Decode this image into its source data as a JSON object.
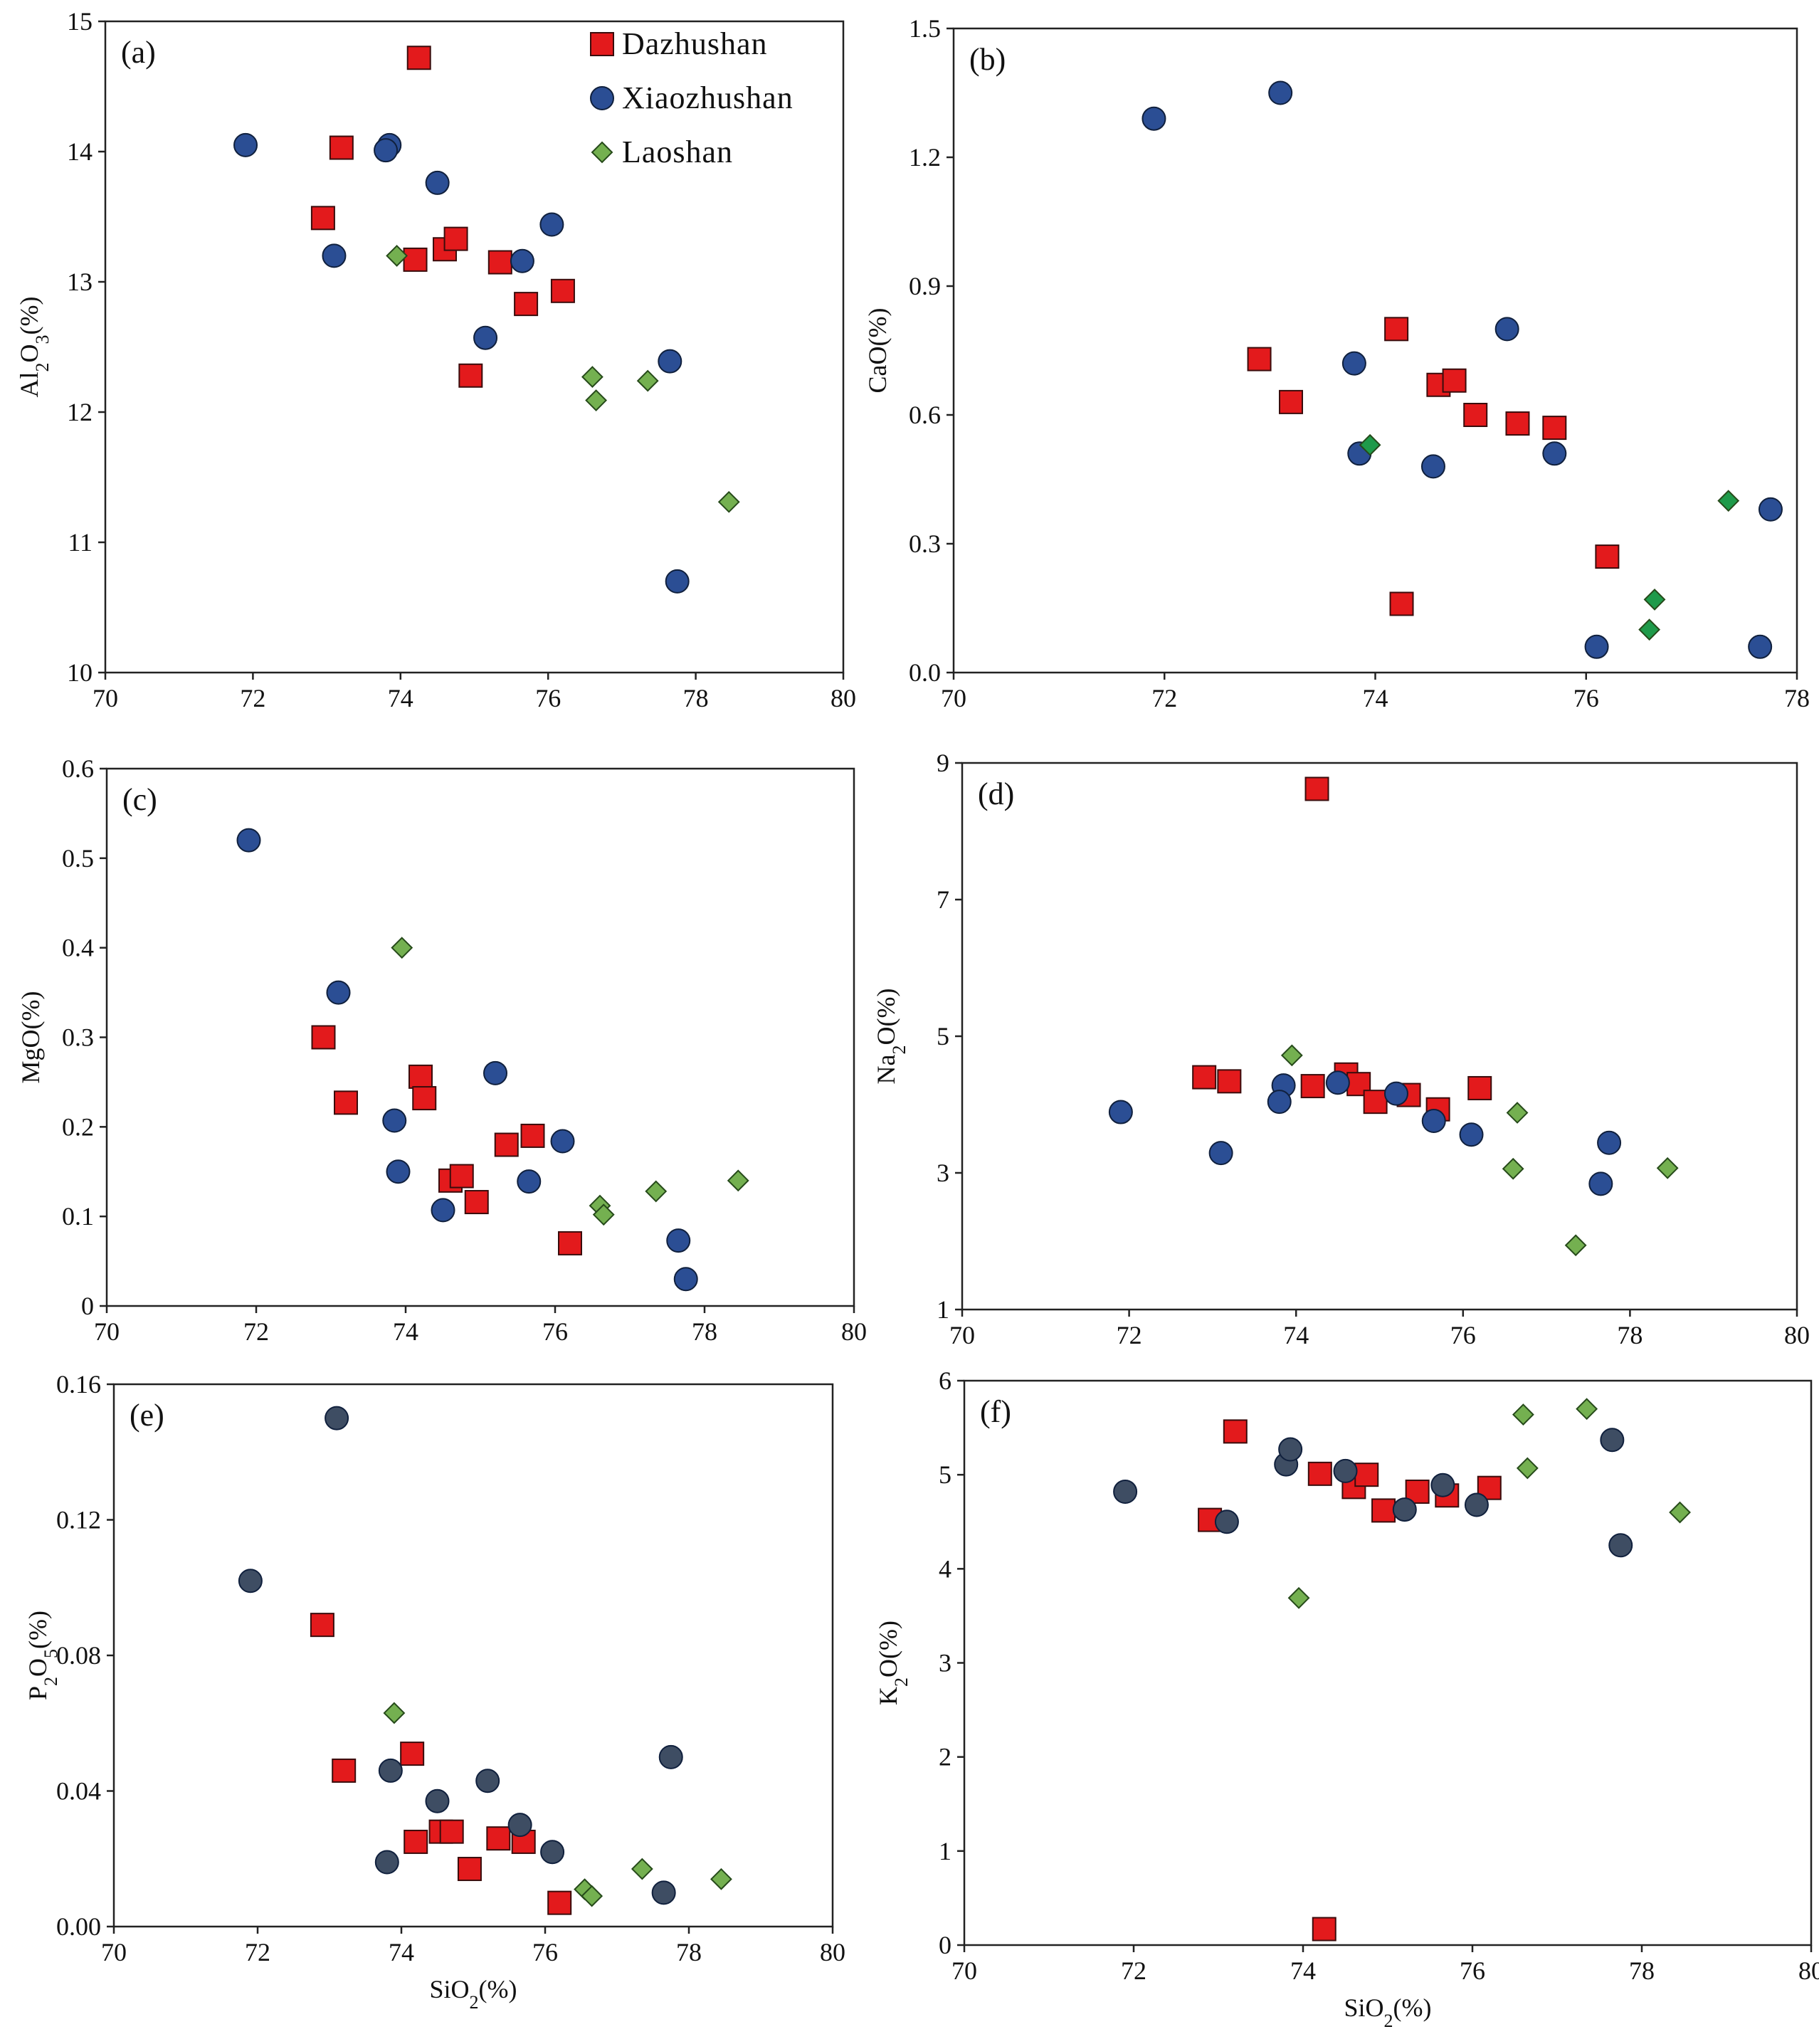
{
  "colors": {
    "Dazhushan": "#e31a1c",
    "Xiaozhushan": "#2b4e94",
    "Xiaozhushan_ef": "#3e4d63",
    "Laoshan": "#74b050",
    "Laoshan_b": "#1f9a4a"
  },
  "legend": [
    {
      "name": "Dazhushan",
      "marker": "square"
    },
    {
      "name": "Xiaozhushan",
      "marker": "circle"
    },
    {
      "name": "Laoshan",
      "marker": "diamond"
    }
  ],
  "chart_data": [
    {
      "type": "scatter",
      "panel": "(a)",
      "title": "",
      "xlabel": "",
      "ylabel": "Al2O3(%)",
      "ylabel_parts": [
        "Al",
        "2",
        "O",
        "3",
        "(%)"
      ],
      "xlim": [
        70,
        80
      ],
      "ylim": [
        10,
        15
      ],
      "xticks": [
        "70",
        "72",
        "74",
        "76",
        "78",
        "80"
      ],
      "yticks": [
        "10",
        "11",
        "12",
        "13",
        "14",
        "15"
      ],
      "series": [
        {
          "name": "Dazhushan",
          "x": [
            74.25,
            73.2,
            72.95,
            74.2,
            74.6,
            74.75,
            75.35,
            75.7,
            76.2,
            74.95
          ],
          "y": [
            14.72,
            14.03,
            13.49,
            13.17,
            13.25,
            13.33,
            13.15,
            12.83,
            12.93,
            12.28
          ]
        },
        {
          "name": "Xiaozhushan",
          "x": [
            71.9,
            73.85,
            73.8,
            74.5,
            73.1,
            76.05,
            75.65,
            75.15,
            77.65,
            77.75
          ],
          "y": [
            14.05,
            14.05,
            14.01,
            13.76,
            13.2,
            13.44,
            13.16,
            12.57,
            12.39,
            10.7
          ]
        },
        {
          "name": "Laoshan",
          "x": [
            73.95,
            76.6,
            76.65,
            77.35,
            78.45
          ],
          "y": [
            13.2,
            12.27,
            12.09,
            12.24,
            11.31
          ]
        }
      ]
    },
    {
      "type": "scatter",
      "panel": "(b)",
      "title": "",
      "xlabel": "",
      "ylabel": "CaO(%)",
      "ylabel_parts": [
        "CaO(%)"
      ],
      "xlim": [
        70,
        78
      ],
      "ylim": [
        0,
        1.5
      ],
      "xticks": [
        "70",
        "72",
        "74",
        "76",
        "78"
      ],
      "yticks": [
        "0.0",
        "0.3",
        "0.6",
        "0.9",
        "1.2",
        "1.5"
      ],
      "series": [
        {
          "name": "Dazhushan",
          "x": [
            72.9,
            73.2,
            74.2,
            74.6,
            74.75,
            74.95,
            75.35,
            75.7,
            76.2,
            74.25
          ],
          "y": [
            0.73,
            0.63,
            0.8,
            0.67,
            0.68,
            0.6,
            0.58,
            0.57,
            0.27,
            0.16
          ]
        },
        {
          "name": "Xiaozhushan",
          "x": [
            71.9,
            73.1,
            73.8,
            73.85,
            74.55,
            75.25,
            75.7,
            76.1,
            77.65,
            77.75
          ],
          "y": [
            1.29,
            1.35,
            0.72,
            0.51,
            0.48,
            0.8,
            0.51,
            0.06,
            0.06,
            0.38
          ]
        },
        {
          "name": "Laoshan",
          "x": [
            73.95,
            76.6,
            76.65,
            77.35
          ],
          "y": [
            0.53,
            0.1,
            0.17,
            0.4
          ]
        }
      ]
    },
    {
      "type": "scatter",
      "panel": "(c)",
      "title": "",
      "xlabel": "",
      "ylabel": "MgO(%)",
      "ylabel_parts": [
        "MgO(%)"
      ],
      "xlim": [
        70,
        80
      ],
      "ylim": [
        0,
        0.6
      ],
      "xticks": [
        "70",
        "72",
        "74",
        "76",
        "78",
        "80"
      ],
      "yticks": [
        "0",
        "0.1",
        "0.2",
        "0.3",
        "0.4",
        "0.5",
        "0.6"
      ],
      "series": [
        {
          "name": "Dazhushan",
          "x": [
            72.9,
            73.2,
            74.2,
            74.25,
            74.6,
            74.75,
            74.95,
            75.35,
            75.7,
            76.2
          ],
          "y": [
            0.3,
            0.227,
            0.256,
            0.232,
            0.14,
            0.145,
            0.116,
            0.18,
            0.19,
            0.07
          ]
        },
        {
          "name": "Xiaozhushan",
          "x": [
            71.9,
            73.1,
            73.85,
            73.9,
            74.5,
            75.2,
            75.65,
            76.1,
            77.65,
            77.75
          ],
          "y": [
            0.52,
            0.35,
            0.207,
            0.15,
            0.107,
            0.26,
            0.139,
            0.184,
            0.073,
            0.03
          ]
        },
        {
          "name": "Laoshan",
          "x": [
            73.95,
            76.6,
            76.65,
            77.35,
            78.45
          ],
          "y": [
            0.4,
            0.112,
            0.102,
            0.128,
            0.14
          ]
        }
      ]
    },
    {
      "type": "scatter",
      "panel": "(d)",
      "title": "",
      "xlabel": "",
      "ylabel": "Na2O(%)",
      "ylabel_parts": [
        "Na",
        "2",
        "O(%)"
      ],
      "xlim": [
        70,
        80
      ],
      "ylim": [
        1,
        9
      ],
      "xticks": [
        "70",
        "72",
        "74",
        "76",
        "78",
        "80"
      ],
      "yticks": [
        "1",
        "3",
        "5",
        "7",
        "9"
      ],
      "series": [
        {
          "name": "Dazhushan",
          "x": [
            74.25,
            72.9,
            73.2,
            74.2,
            74.6,
            74.75,
            74.95,
            75.35,
            75.7,
            76.2
          ],
          "y": [
            8.62,
            4.4,
            4.34,
            4.27,
            4.44,
            4.3,
            4.04,
            4.14,
            3.93,
            4.24
          ]
        },
        {
          "name": "Xiaozhushan",
          "x": [
            71.9,
            73.1,
            73.85,
            73.8,
            74.5,
            75.2,
            75.65,
            76.1,
            77.65,
            77.75
          ],
          "y": [
            3.89,
            3.29,
            4.28,
            4.04,
            4.32,
            4.16,
            3.76,
            3.56,
            2.84,
            3.44
          ]
        },
        {
          "name": "Laoshan",
          "x": [
            73.95,
            76.6,
            76.65,
            77.35,
            78.45
          ],
          "y": [
            4.72,
            3.06,
            3.88,
            1.94,
            3.07
          ]
        }
      ]
    },
    {
      "type": "scatter",
      "panel": "(e)",
      "title": "",
      "xlabel": "SiO2(%)",
      "ylabel": "P2O5(%)",
      "xlabel_parts": [
        "SiO",
        "2",
        "(%)"
      ],
      "ylabel_parts": [
        "P",
        "2",
        "O",
        "5",
        "(%)"
      ],
      "xlim": [
        70,
        80
      ],
      "ylim": [
        0,
        0.16
      ],
      "xticks": [
        "70",
        "72",
        "74",
        "76",
        "78",
        "80"
      ],
      "yticks": [
        "0.00",
        "0.04",
        "0.08",
        "0.12",
        "0.16"
      ],
      "series": [
        {
          "name": "Dazhushan",
          "x": [
            72.9,
            73.2,
            74.15,
            74.2,
            74.55,
            74.7,
            74.95,
            75.35,
            75.7,
            76.2
          ],
          "y": [
            0.089,
            0.046,
            0.051,
            0.025,
            0.028,
            0.028,
            0.017,
            0.026,
            0.025,
            0.007
          ]
        },
        {
          "name": "Xiaozhushan",
          "x": [
            71.9,
            73.1,
            73.85,
            73.8,
            74.5,
            75.2,
            75.65,
            76.1,
            77.65,
            77.75
          ],
          "y": [
            0.102,
            0.15,
            0.046,
            0.019,
            0.037,
            0.043,
            0.03,
            0.022,
            0.01,
            0.05
          ]
        },
        {
          "name": "Laoshan",
          "x": [
            73.9,
            76.55,
            76.65,
            77.35,
            78.45
          ],
          "y": [
            0.063,
            0.011,
            0.009,
            0.017,
            0.014
          ]
        }
      ]
    },
    {
      "type": "scatter",
      "panel": "(f)",
      "title": "",
      "xlabel": "SiO2(%)",
      "ylabel": "K2O(%)",
      "xlabel_parts": [
        "SiO",
        "2",
        "(%)"
      ],
      "ylabel_parts": [
        "K",
        "2",
        "O(%)"
      ],
      "xlim": [
        70,
        80
      ],
      "ylim": [
        0,
        6
      ],
      "xticks": [
        "70",
        "72",
        "74",
        "76",
        "78",
        "80"
      ],
      "yticks": [
        "0",
        "1",
        "2",
        "3",
        "4",
        "5",
        "6"
      ],
      "series": [
        {
          "name": "Dazhushan",
          "x": [
            72.9,
            73.2,
            74.2,
            74.25,
            74.6,
            74.75,
            74.95,
            75.35,
            75.7,
            76.2
          ],
          "y": [
            4.52,
            5.46,
            5.01,
            0.17,
            4.87,
            5.0,
            4.62,
            4.82,
            4.78,
            4.86
          ]
        },
        {
          "name": "Xiaozhushan",
          "x": [
            71.9,
            73.1,
            73.8,
            73.85,
            74.5,
            75.2,
            75.65,
            76.05,
            77.65,
            77.75
          ],
          "y": [
            4.82,
            4.5,
            5.11,
            5.27,
            5.04,
            4.63,
            4.89,
            4.68,
            5.37,
            4.25
          ]
        },
        {
          "name": "Laoshan",
          "x": [
            73.95,
            76.6,
            76.65,
            77.35,
            78.45
          ],
          "y": [
            3.69,
            5.64,
            5.07,
            5.7,
            4.6
          ]
        }
      ]
    }
  ]
}
